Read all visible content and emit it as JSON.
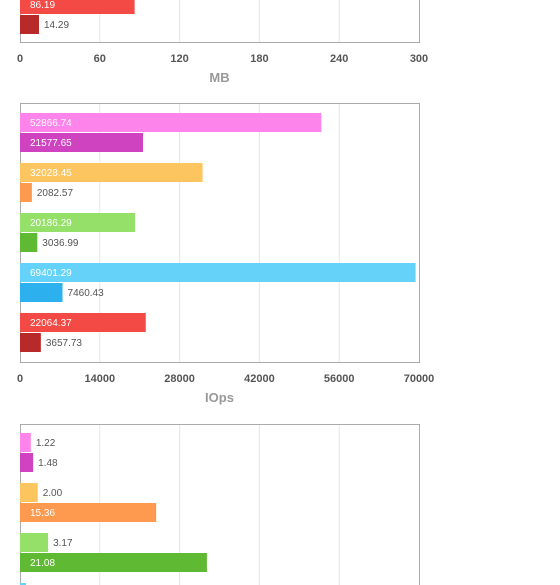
{
  "chart_data": [
    {
      "type": "bar",
      "orientation": "horizontal",
      "xlabel": "MB",
      "xlim": [
        0,
        300
      ],
      "ticks": [
        "0",
        "60",
        "120",
        "180",
        "240",
        "300"
      ],
      "grid": true,
      "bars": [
        {
          "value": 86.19,
          "label": "86.19",
          "color": "#f44a45"
        },
        {
          "value": 14.29,
          "label": "14.29",
          "color": "#b8292a"
        }
      ]
    },
    {
      "type": "bar",
      "orientation": "horizontal",
      "xlabel": "IOps",
      "xlim": [
        0,
        70000
      ],
      "ticks": [
        "0",
        "14000",
        "28000",
        "42000",
        "56000",
        "70000"
      ],
      "grid": true,
      "bars": [
        {
          "value": 52866.74,
          "label": "52866.74",
          "color": "#fd84ea"
        },
        {
          "value": 21577.65,
          "label": "21577.65",
          "color": "#cf42c0"
        },
        {
          "value": 32028.45,
          "label": "32028.45",
          "color": "#fdc55f"
        },
        {
          "value": 2082.57,
          "label": "2082.57",
          "color": "#fe9a4f"
        },
        {
          "value": 20186.29,
          "label": "20186.29",
          "color": "#95e068"
        },
        {
          "value": 3036.99,
          "label": "3036.99",
          "color": "#5fb932"
        },
        {
          "value": 69401.29,
          "label": "69401.29",
          "color": "#65d3f9"
        },
        {
          "value": 7460.43,
          "label": "7460.43",
          "color": "#2cb1ee"
        },
        {
          "value": 22064.37,
          "label": "22064.37",
          "color": "#f44a45"
        },
        {
          "value": 3657.73,
          "label": "3657.73",
          "color": "#b8292a"
        }
      ]
    },
    {
      "type": "bar",
      "orientation": "horizontal",
      "xlim": [
        0,
        45
      ],
      "grid": true,
      "bars": [
        {
          "value": 1.22,
          "label": "1.22",
          "color": "#fd84ea"
        },
        {
          "value": 1.48,
          "label": "1.48",
          "color": "#cf42c0"
        },
        {
          "value": 2.0,
          "label": "2.00",
          "color": "#fdc55f"
        },
        {
          "value": 15.36,
          "label": "15.36",
          "color": "#fe9a4f"
        },
        {
          "value": 3.17,
          "label": "3.17",
          "color": "#95e068"
        },
        {
          "value": 21.08,
          "label": "21.08",
          "color": "#5fb932"
        },
        {
          "value": 0.0,
          "label": "",
          "color": "#65d3f9"
        }
      ]
    }
  ]
}
